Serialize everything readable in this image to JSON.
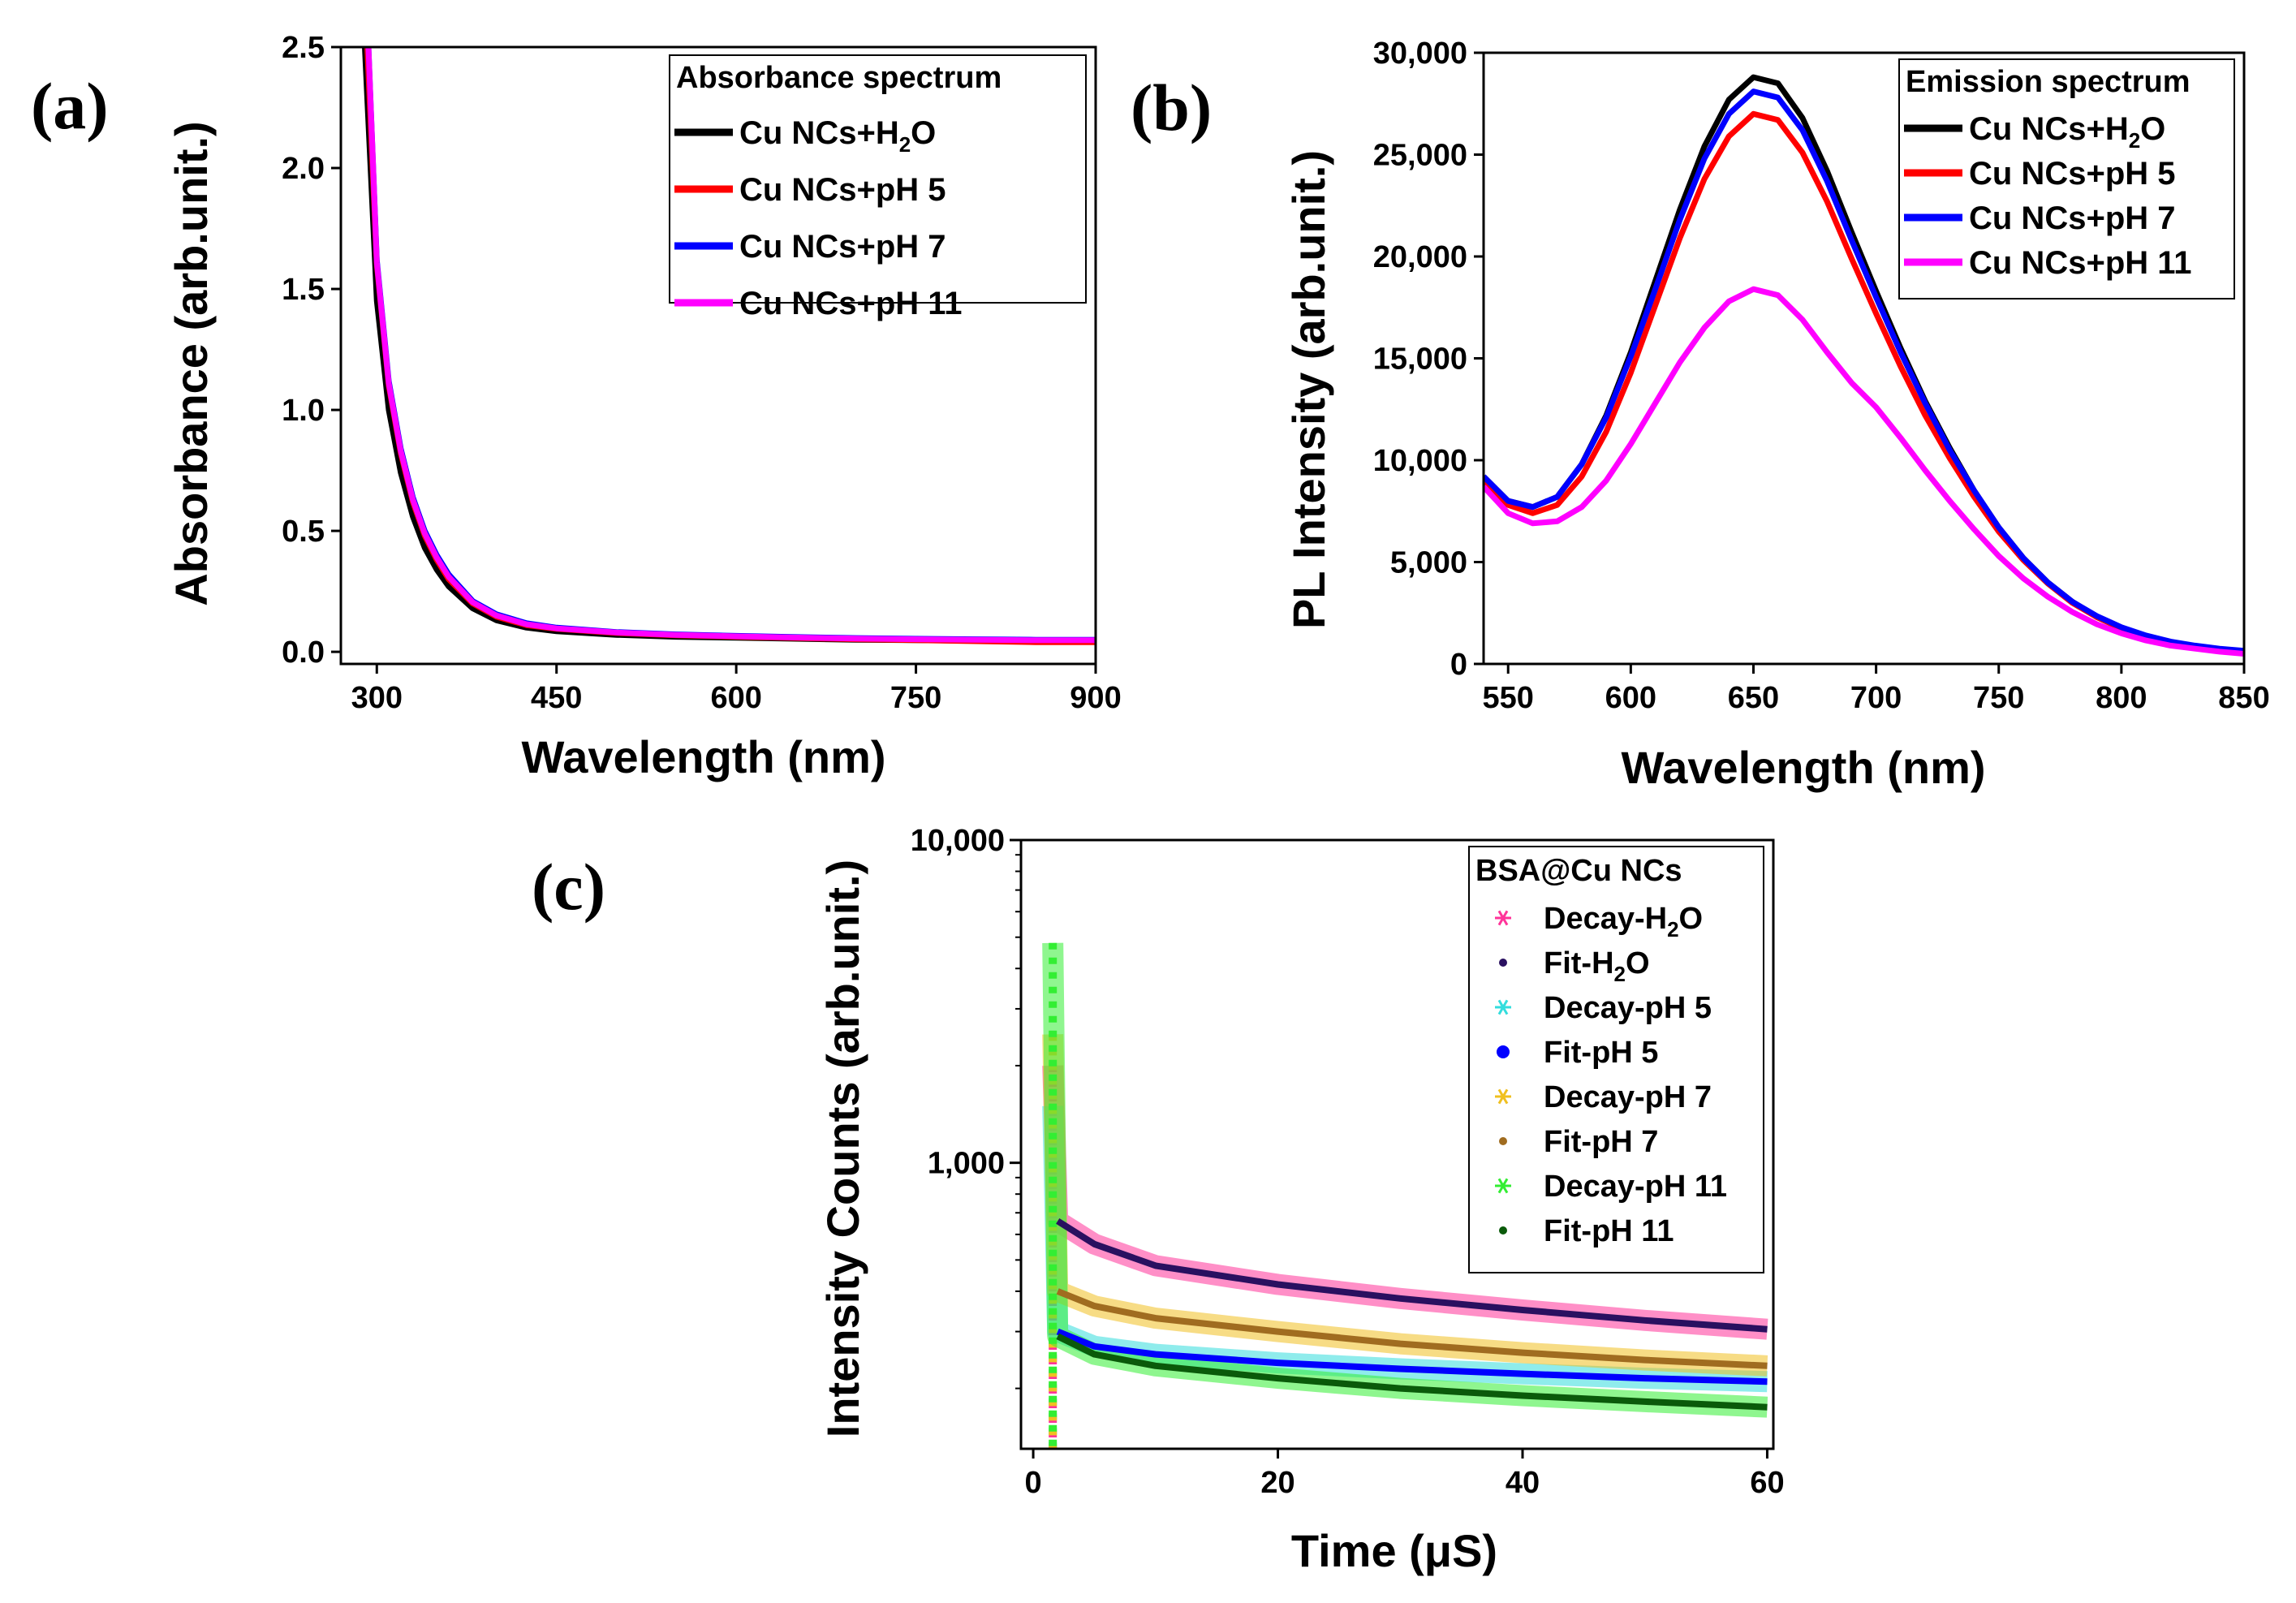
{
  "figure": {
    "panel_labels": [
      "(a)",
      "(b)",
      "(c)"
    ]
  },
  "chart_data": [
    {
      "id": "a",
      "type": "line",
      "panel_label": "(a)",
      "legend_title": "Absorbance spectrum",
      "legend_position": "top-right",
      "xlabel": "Wavelength (nm)",
      "ylabel": "Absorbance (arb.unit.)",
      "xlim": [
        270,
        900
      ],
      "ylim": [
        -0.05,
        2.5
      ],
      "xticks": [
        300,
        450,
        600,
        750,
        900
      ],
      "xtick_labels": [
        "300",
        "450",
        "600",
        "750",
        "900"
      ],
      "yticks": [
        0.0,
        0.5,
        1.0,
        1.5,
        2.0,
        2.5
      ],
      "ytick_labels": [
        "0.0",
        "0.5",
        "1.0",
        "1.5",
        "2.0",
        "2.5"
      ],
      "series": [
        {
          "name": "Cu NCs+H",
          "sub": "2",
          "tail": "O",
          "color": "#000000",
          "x": [
            290,
            300,
            310,
            320,
            330,
            340,
            350,
            360,
            380,
            400,
            425,
            450,
            500,
            550,
            600,
            650,
            700,
            750,
            800,
            850,
            900
          ],
          "y": [
            2.5,
            1.45,
            1.0,
            0.74,
            0.56,
            0.43,
            0.34,
            0.27,
            0.18,
            0.13,
            0.1,
            0.085,
            0.07,
            0.062,
            0.058,
            0.054,
            0.05,
            0.048,
            0.046,
            0.045,
            0.044
          ]
        },
        {
          "name": "Cu NCs+pH 5",
          "color": "#ff0000",
          "x": [
            292,
            300,
            310,
            320,
            330,
            340,
            350,
            360,
            380,
            400,
            425,
            450,
            500,
            550,
            600,
            650,
            700,
            750,
            800,
            850,
            900
          ],
          "y": [
            2.5,
            1.6,
            1.1,
            0.82,
            0.62,
            0.48,
            0.38,
            0.3,
            0.2,
            0.145,
            0.11,
            0.095,
            0.078,
            0.068,
            0.062,
            0.057,
            0.052,
            0.048,
            0.044,
            0.04,
            0.04
          ]
        },
        {
          "name": "Cu NCs+pH 7",
          "color": "#0000ff",
          "x": [
            293,
            300,
            310,
            320,
            330,
            340,
            350,
            360,
            380,
            400,
            425,
            450,
            500,
            550,
            600,
            650,
            700,
            750,
            800,
            850,
            900
          ],
          "y": [
            2.5,
            1.62,
            1.12,
            0.84,
            0.64,
            0.5,
            0.4,
            0.32,
            0.21,
            0.155,
            0.118,
            0.1,
            0.082,
            0.072,
            0.066,
            0.061,
            0.057,
            0.054,
            0.052,
            0.05,
            0.05
          ]
        },
        {
          "name": "Cu NCs+pH 11",
          "color": "#ff00ff",
          "x": [
            293,
            300,
            310,
            320,
            330,
            340,
            350,
            360,
            380,
            400,
            425,
            450,
            500,
            550,
            600,
            650,
            700,
            750,
            800,
            850,
            900
          ],
          "y": [
            2.5,
            1.61,
            1.11,
            0.83,
            0.63,
            0.49,
            0.39,
            0.31,
            0.205,
            0.15,
            0.114,
            0.097,
            0.08,
            0.07,
            0.064,
            0.059,
            0.055,
            0.052,
            0.05,
            0.048,
            0.048
          ]
        }
      ]
    },
    {
      "id": "b",
      "type": "line",
      "panel_label": "(b)",
      "legend_title": "Emission spectrum",
      "legend_position": "top-right",
      "xlabel": "Wavelength (nm)",
      "ylabel": "PL Intensity (arb.unit.)",
      "xlim": [
        540,
        850
      ],
      "ylim": [
        0,
        30000
      ],
      "xticks": [
        550,
        600,
        650,
        700,
        750,
        800,
        850
      ],
      "xtick_labels": [
        "550",
        "600",
        "650",
        "700",
        "750",
        "800",
        "850"
      ],
      "yticks": [
        0,
        5000,
        10000,
        15000,
        20000,
        25000,
        30000
      ],
      "ytick_labels": [
        "0",
        "5,000",
        "10,000",
        "15,000",
        "20,000",
        "25,000",
        "30,000"
      ],
      "series": [
        {
          "name": "Cu NCs+H",
          "sub": "2",
          "tail": "O",
          "color": "#000000",
          "x": [
            540,
            550,
            560,
            570,
            580,
            590,
            600,
            610,
            620,
            630,
            640,
            650,
            660,
            670,
            680,
            690,
            700,
            710,
            720,
            730,
            740,
            750,
            760,
            770,
            780,
            790,
            800,
            810,
            820,
            830,
            840,
            850
          ],
          "y": [
            9200,
            8000,
            7700,
            8200,
            9800,
            12200,
            15300,
            18800,
            22300,
            25400,
            27700,
            28800,
            28500,
            26800,
            24200,
            21200,
            18300,
            15500,
            12900,
            10600,
            8500,
            6700,
            5200,
            4000,
            3050,
            2300,
            1750,
            1350,
            1050,
            850,
            700,
            600
          ]
        },
        {
          "name": "Cu NCs+pH 5",
          "color": "#ff0000",
          "x": [
            540,
            550,
            560,
            570,
            580,
            590,
            600,
            610,
            620,
            630,
            640,
            650,
            660,
            670,
            680,
            690,
            700,
            710,
            720,
            730,
            740,
            750,
            760,
            770,
            780,
            790,
            800,
            810,
            820,
            830,
            840,
            850
          ],
          "y": [
            9000,
            7800,
            7400,
            7800,
            9200,
            11400,
            14300,
            17600,
            20900,
            23800,
            25900,
            27000,
            26700,
            25100,
            22700,
            19900,
            17200,
            14600,
            12200,
            10100,
            8200,
            6500,
            5100,
            3950,
            3000,
            2300,
            1750,
            1350,
            1050,
            850,
            700,
            600
          ]
        },
        {
          "name": "Cu NCs+pH 7",
          "color": "#0000ff",
          "x": [
            540,
            550,
            560,
            570,
            580,
            590,
            600,
            610,
            620,
            630,
            640,
            650,
            660,
            670,
            680,
            690,
            700,
            710,
            720,
            730,
            740,
            750,
            760,
            770,
            780,
            790,
            800,
            810,
            820,
            830,
            840,
            850
          ],
          "y": [
            9200,
            8000,
            7700,
            8200,
            9800,
            12100,
            15100,
            18400,
            21800,
            24800,
            27000,
            28100,
            27800,
            26200,
            23700,
            20800,
            18000,
            15300,
            12800,
            10500,
            8500,
            6700,
            5200,
            4000,
            3050,
            2350,
            1800,
            1400,
            1100,
            900,
            750,
            650
          ]
        },
        {
          "name": "Cu NCs+pH 11",
          "color": "#ff00ff",
          "x": [
            540,
            550,
            560,
            570,
            580,
            590,
            600,
            610,
            620,
            630,
            640,
            650,
            660,
            670,
            680,
            690,
            700,
            710,
            720,
            730,
            740,
            750,
            760,
            770,
            780,
            790,
            800,
            810,
            820,
            830,
            840,
            850
          ],
          "y": [
            8700,
            7400,
            6900,
            7000,
            7700,
            9000,
            10800,
            12800,
            14800,
            16500,
            17800,
            18400,
            18100,
            16900,
            15300,
            13800,
            12600,
            11100,
            9500,
            8000,
            6600,
            5300,
            4200,
            3300,
            2550,
            1950,
            1500,
            1150,
            900,
            750,
            600,
            500
          ]
        }
      ]
    },
    {
      "id": "c",
      "type": "scatter",
      "panel_label": "(c)",
      "legend_title": "BSA@Cu NCs",
      "legend_position": "top-right",
      "xlabel": "Time (μS)",
      "ylabel": "Intensity Counts (arb.unit.)",
      "yscale": "log",
      "xlim": [
        -1,
        60.5
      ],
      "ylim": [
        130,
        10000
      ],
      "xticks": [
        0,
        20,
        40,
        60
      ],
      "xtick_labels": [
        "0",
        "20",
        "40",
        "60"
      ],
      "yticks": [
        1000,
        10000
      ],
      "ytick_labels": [
        "1,000",
        "10,000"
      ],
      "decay_series": [
        {
          "name": "Decay-H",
          "sub": "2",
          "tail": "O",
          "color": "#ff3399",
          "marker": "asterisk",
          "x": [
            1.6,
            2,
            5,
            10,
            20,
            30,
            40,
            50,
            60
          ],
          "y": [
            2000,
            660,
            560,
            480,
            420,
            380,
            350,
            325,
            305
          ]
        },
        {
          "name": "Decay-pH 5",
          "color": "#33dddd",
          "marker": "asterisk",
          "x": [
            1.6,
            2,
            5,
            10,
            20,
            30,
            40,
            50,
            60
          ],
          "y": [
            1500,
            300,
            270,
            255,
            240,
            230,
            222,
            215,
            210
          ]
        },
        {
          "name": "Decay-pH 7",
          "color": "#f0c020",
          "marker": "asterisk",
          "x": [
            1.6,
            2,
            5,
            10,
            20,
            30,
            40,
            50,
            60
          ],
          "y": [
            2500,
            400,
            360,
            330,
            300,
            275,
            258,
            245,
            235
          ]
        },
        {
          "name": "Decay-pH 11",
          "color": "#33ee33",
          "marker": "asterisk",
          "x": [
            1.6,
            2,
            5,
            10,
            20,
            30,
            40,
            50,
            60
          ],
          "y": [
            4800,
            290,
            255,
            235,
            215,
            200,
            190,
            182,
            175
          ]
        }
      ],
      "fit_series": [
        {
          "name": "Fit-H",
          "sub": "2",
          "tail": "O",
          "color": "#2a1060",
          "marker": "dot",
          "x": [
            2,
            5,
            10,
            20,
            30,
            40,
            50,
            60
          ],
          "y": [
            660,
            560,
            480,
            420,
            380,
            350,
            325,
            305
          ]
        },
        {
          "name": "Fit-pH 5",
          "color": "#0000ff",
          "marker": "dot",
          "x": [
            2,
            5,
            10,
            20,
            30,
            40,
            50,
            60
          ],
          "y": [
            300,
            270,
            255,
            240,
            230,
            222,
            215,
            210
          ]
        },
        {
          "name": "Fit-pH 7",
          "color": "#a06c20",
          "marker": "dot",
          "x": [
            2,
            5,
            10,
            20,
            30,
            40,
            50,
            60
          ],
          "y": [
            400,
            360,
            330,
            300,
            275,
            258,
            245,
            235
          ]
        },
        {
          "name": "Fit-pH 11",
          "color": "#0a5a0a",
          "marker": "dot",
          "x": [
            2,
            5,
            10,
            20,
            30,
            40,
            50,
            60
          ],
          "y": [
            290,
            255,
            235,
            215,
            200,
            190,
            182,
            175
          ]
        }
      ],
      "legend_order": [
        "Decay-H2O",
        "Fit-H2O",
        "Decay-pH 5",
        "Fit-pH 5",
        "Decay-pH 7",
        "Fit-pH 7",
        "Decay-pH 11",
        "Fit-pH 11"
      ]
    }
  ]
}
